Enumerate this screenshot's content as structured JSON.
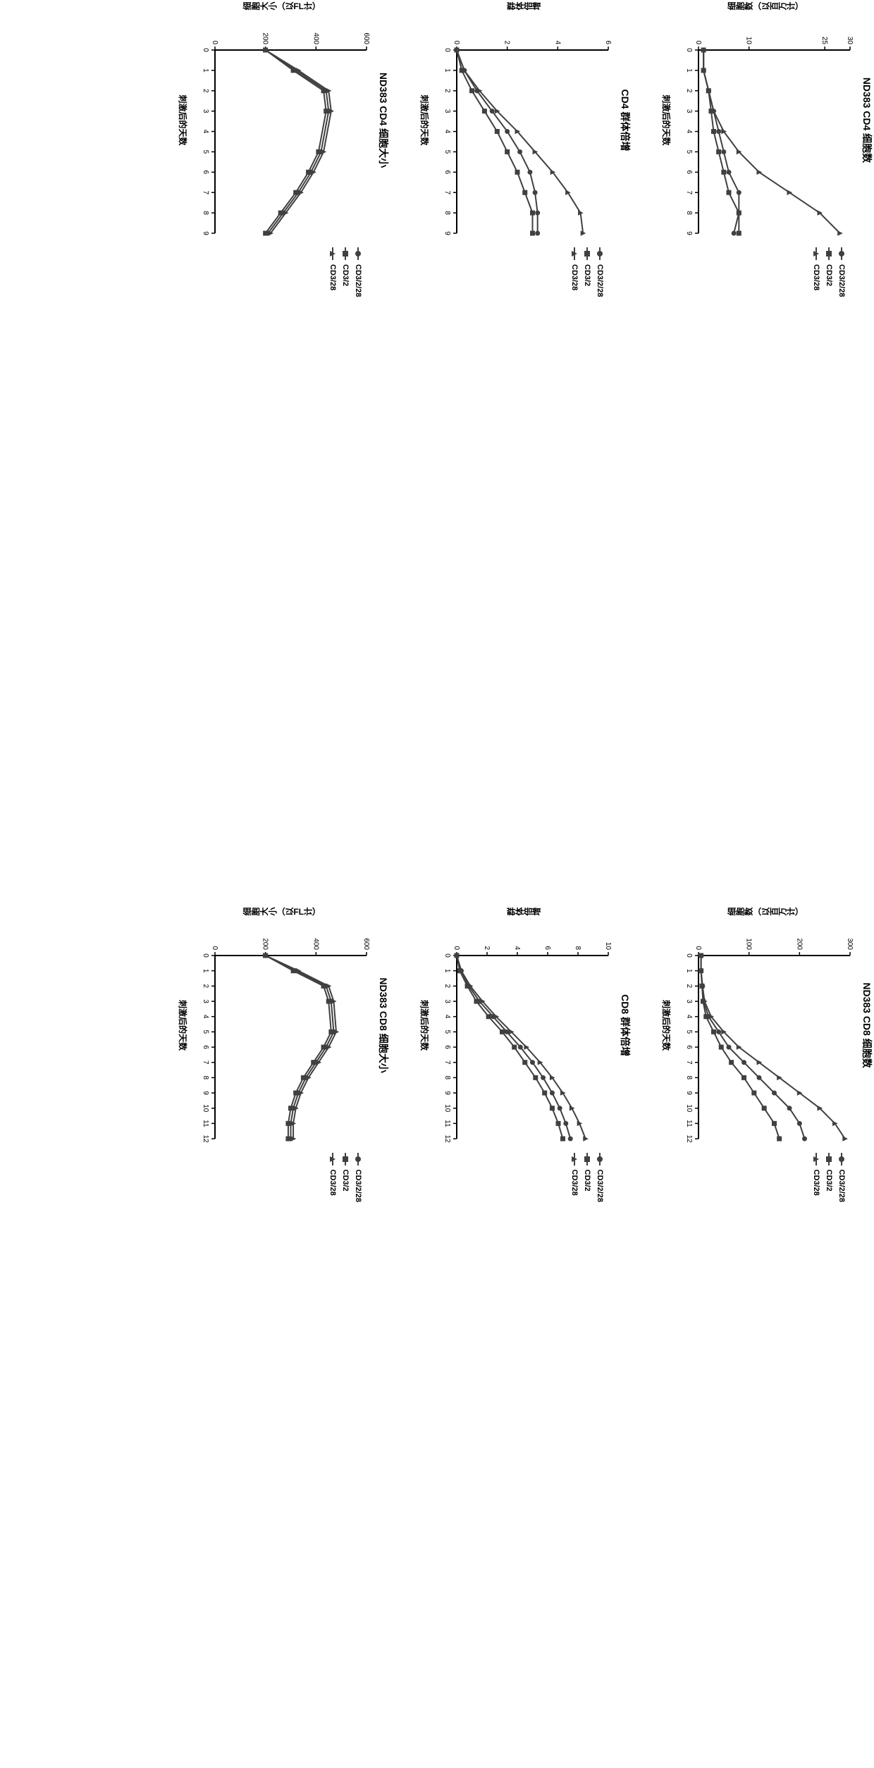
{
  "global": {
    "background_color": "#ffffff",
    "axis_color": "#000000",
    "tick_fontsize": 10,
    "title_fontsize": 14,
    "label_fontsize": 12,
    "legend_fontsize": 11,
    "line_width": 2,
    "marker_size": 6,
    "rotation_deg": 90
  },
  "series_defs": [
    {
      "id": "CD3/2/28",
      "label": "CD3/2/28",
      "color": "#404040",
      "marker": "circle"
    },
    {
      "id": "CD3/2",
      "label": "CD3/2",
      "color": "#404040",
      "marker": "square"
    },
    {
      "id": "CD3/28",
      "label": "CD3/28",
      "color": "#404040",
      "marker": "triangle"
    }
  ],
  "panels": [
    {
      "key": "cd4_count",
      "type": "line",
      "title": "ND383 CD4 细胞数",
      "xlabel": "刺激后的天数",
      "ylabel": "细胞数（以百万计）",
      "xlim": [
        0,
        9
      ],
      "xtick_step": 1,
      "ylim": [
        0,
        30
      ],
      "yticks": [
        0,
        10,
        25,
        30
      ],
      "x": [
        0,
        1,
        2,
        3,
        4,
        5,
        6,
        7,
        8,
        9
      ],
      "series": [
        {
          "id": "CD3/2/28",
          "y": [
            1,
            1,
            2,
            3,
            4,
            5,
            6,
            8,
            8,
            7
          ]
        },
        {
          "id": "CD3/2",
          "y": [
            1,
            1,
            2,
            2.5,
            3,
            4,
            5,
            6,
            8,
            8
          ]
        },
        {
          "id": "CD3/28",
          "y": [
            1,
            1,
            2,
            3,
            5,
            8,
            12,
            18,
            24,
            28
          ]
        }
      ]
    },
    {
      "key": "cd8_count",
      "type": "line",
      "title": "ND383 CD8 细胞数",
      "xlabel": "刺激后的天数",
      "ylabel": "细胞数（以百万计）",
      "xlim": [
        0,
        12
      ],
      "xtick_step": 1,
      "ylim": [
        0,
        300
      ],
      "yticks": [
        0,
        100,
        200,
        300
      ],
      "x": [
        0,
        1,
        2,
        3,
        4,
        5,
        6,
        7,
        8,
        9,
        10,
        11,
        12
      ],
      "series": [
        {
          "id": "CD3/2/28",
          "y": [
            5,
            5,
            8,
            10,
            20,
            40,
            60,
            90,
            120,
            150,
            180,
            200,
            210
          ]
        },
        {
          "id": "CD3/2",
          "y": [
            5,
            5,
            7,
            9,
            15,
            30,
            45,
            65,
            90,
            110,
            130,
            150,
            160
          ]
        },
        {
          "id": "CD3/28",
          "y": [
            5,
            5,
            8,
            12,
            25,
            50,
            80,
            120,
            160,
            200,
            240,
            270,
            290
          ]
        }
      ]
    },
    {
      "key": "cd4_doubling",
      "type": "line",
      "title": "CD4 群体倍增",
      "xlabel": "刺激后的天数",
      "ylabel": "群体倍增",
      "xlim": [
        0,
        9
      ],
      "xtick_step": 1,
      "ylim": [
        0,
        6
      ],
      "yticks": [
        0,
        2,
        4,
        6
      ],
      "x": [
        0,
        1,
        2,
        3,
        4,
        5,
        6,
        7,
        8,
        9
      ],
      "series": [
        {
          "id": "CD3/2/28",
          "y": [
            0,
            0.3,
            0.8,
            1.4,
            2.0,
            2.5,
            2.9,
            3.1,
            3.2,
            3.2
          ]
        },
        {
          "id": "CD3/2",
          "y": [
            0,
            0.2,
            0.6,
            1.1,
            1.6,
            2.0,
            2.4,
            2.7,
            3.0,
            3.0
          ]
        },
        {
          "id": "CD3/28",
          "y": [
            0,
            0.3,
            0.9,
            1.6,
            2.4,
            3.1,
            3.8,
            4.4,
            4.9,
            5.0
          ]
        }
      ]
    },
    {
      "key": "cd8_doubling",
      "type": "line",
      "title": "CD8 群体倍增",
      "xlabel": "刺激后的天数",
      "ylabel": "群体倍增",
      "xlim": [
        0,
        12
      ],
      "xtick_step": 1,
      "ylim": [
        0,
        10
      ],
      "yticks": [
        0,
        2,
        4,
        6,
        8,
        10
      ],
      "x": [
        0,
        1,
        2,
        3,
        4,
        5,
        6,
        7,
        8,
        9,
        10,
        11,
        12
      ],
      "series": [
        {
          "id": "CD3/2/28",
          "y": [
            0,
            0.3,
            0.8,
            1.5,
            2.4,
            3.3,
            4.2,
            5.0,
            5.7,
            6.3,
            6.8,
            7.2,
            7.5
          ]
        },
        {
          "id": "CD3/2",
          "y": [
            0,
            0.2,
            0.7,
            1.3,
            2.1,
            3.0,
            3.8,
            4.5,
            5.2,
            5.8,
            6.3,
            6.7,
            7.0
          ]
        },
        {
          "id": "CD3/28",
          "y": [
            0,
            0.3,
            0.9,
            1.7,
            2.6,
            3.6,
            4.6,
            5.5,
            6.3,
            7.0,
            7.6,
            8.1,
            8.5
          ]
        }
      ]
    },
    {
      "key": "cd4_size",
      "type": "line",
      "title": "ND383 CD4 细胞大小",
      "xlabel": "刺激后的天数",
      "ylabel": "细胞大小（以FL计）",
      "xlim": [
        0,
        9
      ],
      "xtick_step": 1,
      "ylim": [
        0,
        600
      ],
      "yticks": [
        0,
        200,
        400,
        600
      ],
      "x": [
        0,
        1,
        2,
        3,
        5,
        6,
        7,
        8,
        9
      ],
      "series": [
        {
          "id": "CD3/2/28",
          "y": [
            200,
            320,
            440,
            450,
            420,
            380,
            330,
            270,
            210
          ]
        },
        {
          "id": "CD3/2",
          "y": [
            200,
            310,
            430,
            440,
            410,
            370,
            320,
            260,
            200
          ]
        },
        {
          "id": "CD3/28",
          "y": [
            200,
            330,
            450,
            460,
            430,
            390,
            340,
            280,
            220
          ]
        }
      ]
    },
    {
      "key": "cd8_size",
      "type": "line",
      "title": "ND383 CD8 细胞大小",
      "xlabel": "刺激后的天数",
      "ylabel": "细胞大小（以FL计）",
      "xlim": [
        0,
        12
      ],
      "xtick_step": 1,
      "ylim": [
        0,
        600
      ],
      "yticks": [
        0,
        200,
        400,
        600
      ],
      "x": [
        0,
        1,
        2,
        3,
        5,
        6,
        7,
        8,
        9,
        10,
        11,
        12
      ],
      "series": [
        {
          "id": "CD3/2/28",
          "y": [
            200,
            320,
            440,
            460,
            470,
            440,
            400,
            360,
            330,
            310,
            300,
            300
          ]
        },
        {
          "id": "CD3/2",
          "y": [
            200,
            310,
            430,
            450,
            460,
            430,
            390,
            350,
            320,
            300,
            290,
            290
          ]
        },
        {
          "id": "CD3/28",
          "y": [
            200,
            330,
            450,
            470,
            480,
            450,
            410,
            370,
            340,
            320,
            310,
            310
          ]
        }
      ]
    }
  ]
}
